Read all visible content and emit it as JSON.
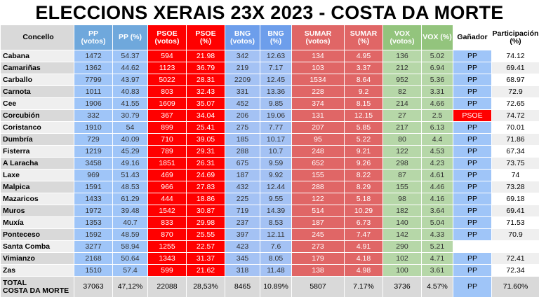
{
  "header": {
    "title": "ELECCIONS XERAIS 23X 2023 - COSTA DA MORTE"
  },
  "table": {
    "columns": [
      "Concello",
      "PP\n(votos)",
      "PP (%)",
      "PSOE\n(votos)",
      "PSOE\n(%)",
      "BNG\n(votos)",
      "BNG\n(%)",
      "SUMAR\n(votos)",
      "SUMAR\n(%)",
      "VOX\n(votos)",
      "VOX (%)",
      "Gañador",
      "Participación\n(%)"
    ],
    "rows": [
      [
        "Cabana",
        1472,
        54.37,
        594,
        21.98,
        342,
        12.63,
        134,
        4.95,
        136,
        5.02,
        "PP",
        74.12
      ],
      [
        "Camariñas",
        1362,
        44.62,
        1123,
        36.79,
        219,
        7.17,
        103,
        3.37,
        212,
        6.94,
        "PP",
        69.41
      ],
      [
        "Carballo",
        7799,
        43.97,
        5022,
        28.31,
        2209,
        12.45,
        1534,
        8.64,
        952,
        5.36,
        "PP",
        68.97
      ],
      [
        "Carnota",
        1011,
        40.83,
        803,
        32.43,
        331,
        13.36,
        228,
        9.2,
        82,
        3.31,
        "PP",
        72.9
      ],
      [
        "Cee",
        1906,
        41.55,
        1609,
        35.07,
        452,
        9.85,
        374,
        8.15,
        214,
        4.66,
        "PP",
        72.65
      ],
      [
        "Corcubión",
        332,
        30.79,
        367,
        34.04,
        206,
        19.06,
        131,
        12.15,
        27,
        2.5,
        "PSOE",
        74.72
      ],
      [
        "Coristanco",
        1910,
        54,
        899,
        25.41,
        275,
        7.77,
        207,
        5.85,
        217,
        6.13,
        "PP",
        70.01
      ],
      [
        "Dumbría",
        729,
        40.09,
        710,
        39.05,
        185,
        10.17,
        95,
        5.22,
        80,
        4.4,
        "PP",
        71.86
      ],
      [
        "Fisterra",
        1219,
        45.29,
        789,
        29.31,
        288,
        10.7,
        248,
        9.21,
        122,
        4.53,
        "PP",
        67.34
      ],
      [
        "A Laracha",
        3458,
        49.16,
        1851,
        26.31,
        675,
        9.59,
        652,
        9.26,
        298,
        4.23,
        "PP",
        73.75
      ],
      [
        "Laxe",
        969,
        51.43,
        469,
        24.69,
        187,
        9.92,
        155,
        8.22,
        87,
        4.61,
        "PP",
        74
      ],
      [
        "Malpica",
        1591,
        48.53,
        966,
        27.83,
        432,
        12.44,
        288,
        8.29,
        155,
        4.46,
        "PP",
        73.28
      ],
      [
        "Mazaricos",
        1433,
        61.29,
        444,
        18.86,
        225,
        9.55,
        122,
        5.18,
        98,
        4.16,
        "PP",
        69.18
      ],
      [
        "Muros",
        1972,
        39.48,
        1542,
        30.87,
        719,
        14.39,
        514,
        10.29,
        182,
        3.64,
        "PP",
        69.41
      ],
      [
        "Muxía",
        1353,
        40.7,
        833,
        29.98,
        237,
        8.53,
        187,
        6.73,
        140,
        5.04,
        "PP",
        71.53
      ],
      [
        "Ponteceso",
        1592,
        48.59,
        870,
        25.55,
        397,
        12.11,
        245,
        7.47,
        142,
        4.33,
        "PP",
        70.9
      ],
      [
        "Santa Comba",
        3277,
        58.94,
        1255,
        22.57,
        423,
        7.6,
        273,
        4.91,
        290,
        5.21,
        null,
        null
      ],
      [
        "Vimianzo",
        2168,
        50.64,
        1343,
        31.37,
        345,
        8.05,
        179,
        4.18,
        102,
        4.71,
        "PP",
        72.41
      ],
      [
        "Zas",
        1510,
        57.4,
        599,
        21.62,
        318,
        11.48,
        138,
        4.98,
        100,
        3.61,
        "PP",
        72.34
      ]
    ],
    "total": [
      "TOTAL\nCOSTA DA MORTE",
      37063,
      "47,12%",
      22088,
      "28,53%",
      8465,
      "10.89%",
      5807,
      "7.17%",
      3736,
      "4.57%",
      "PP",
      "71.60%"
    ]
  }
}
